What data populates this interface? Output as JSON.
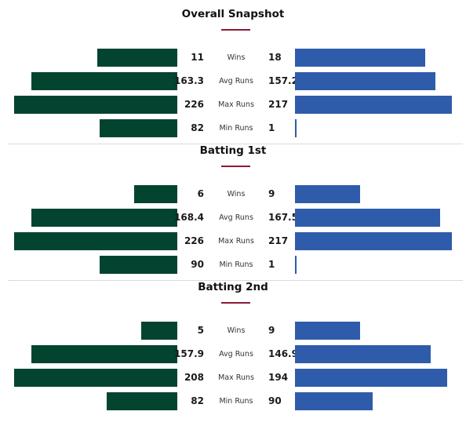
{
  "colors": {
    "left_team": "#024430",
    "right_team": "#2f5caa",
    "underline": "#8b1a35"
  },
  "chart_data": [
    {
      "type": "bar",
      "title": "Overall Snapshot",
      "categories": [
        "Wins",
        "Avg Runs",
        "Max Runs",
        "Min Runs"
      ],
      "series": [
        {
          "values": [
            11,
            163.3,
            226,
            82
          ]
        },
        {
          "values": [
            18,
            157.2,
            217,
            1
          ]
        }
      ],
      "value_labels": {
        "left": [
          "11",
          "163.3",
          "226",
          "82"
        ],
        "right": [
          "18",
          "157.2",
          "217",
          "1"
        ]
      }
    },
    {
      "type": "bar",
      "title": "Batting 1st",
      "categories": [
        "Wins",
        "Avg Runs",
        "Max Runs",
        "Min Runs"
      ],
      "series": [
        {
          "values": [
            6,
            168.4,
            226,
            90
          ]
        },
        {
          "values": [
            9,
            167.5,
            217,
            1
          ]
        }
      ],
      "value_labels": {
        "left": [
          "6",
          "168.4",
          "226",
          "90"
        ],
        "right": [
          "9",
          "167.5",
          "217",
          "1"
        ]
      }
    },
    {
      "type": "bar",
      "title": "Batting 2nd",
      "categories": [
        "Wins",
        "Avg Runs",
        "Max Runs",
        "Min Runs"
      ],
      "series": [
        {
          "values": [
            5,
            157.9,
            208,
            82
          ]
        },
        {
          "values": [
            9,
            146.9,
            194,
            90
          ]
        }
      ],
      "value_labels": {
        "left": [
          "5",
          "157.9",
          "208",
          "82"
        ],
        "right": [
          "9",
          "146.9",
          "194",
          "90"
        ]
      }
    }
  ]
}
